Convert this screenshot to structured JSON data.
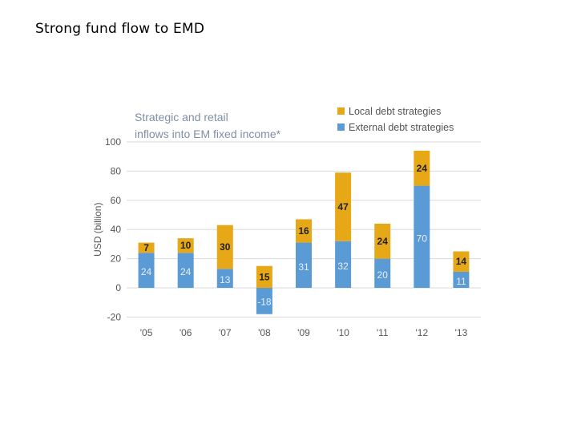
{
  "slide_title": "Strong fund flow to EMD",
  "chart_data": {
    "type": "bar",
    "stacked": true,
    "title_lines": [
      "Strategic and retail",
      "inflows into EM fixed income*"
    ],
    "ylabel": "USD (billion)",
    "xlabel": "",
    "categories": [
      "'05",
      "'06",
      "'07",
      "'08",
      "'09",
      "'10",
      "'11",
      "'12",
      "'13"
    ],
    "series": [
      {
        "name": "External debt strategies",
        "color": "#5b9bd5",
        "values": [
          24,
          24,
          13,
          -18,
          31,
          32,
          20,
          70,
          11
        ],
        "labels": [
          "24",
          "24",
          "13",
          "-18",
          "31",
          "32",
          "20",
          "70",
          "11"
        ]
      },
      {
        "name": "Local debt strategies",
        "color": "#e6a817",
        "values": [
          7,
          10,
          30,
          15,
          16,
          47,
          24,
          24,
          14
        ],
        "labels": [
          "7",
          "10",
          "30",
          "15",
          "16",
          "47",
          "24",
          "24",
          "14"
        ]
      }
    ],
    "legend_order": [
      "Local debt strategies",
      "External debt strategies"
    ],
    "yticks": [
      "100",
      "80",
      "60",
      "40",
      "20",
      "0",
      "-20"
    ],
    "ytick_values": [
      100,
      80,
      60,
      40,
      20,
      0,
      -20
    ],
    "ylim": [
      -20,
      100
    ],
    "grid": true,
    "legend_position": "top-right"
  }
}
